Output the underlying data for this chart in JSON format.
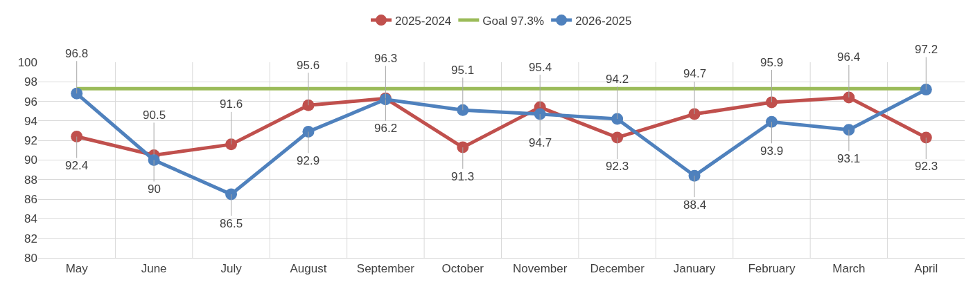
{
  "chart_data": {
    "type": "line",
    "categories": [
      "May",
      "June",
      "July",
      "August",
      "September",
      "October",
      "November",
      "December",
      "January",
      "February",
      "March",
      "April"
    ],
    "series": [
      {
        "name": "2025-2024",
        "color": "#c0504d",
        "marker": "circle",
        "values": [
          92.4,
          90.5,
          91.6,
          95.6,
          96.3,
          91.3,
          95.4,
          92.3,
          94.7,
          95.9,
          96.4,
          92.3
        ],
        "value_labels": [
          "92.4",
          "90.5",
          "91.6",
          "95.6",
          "96.3",
          "91.3",
          "95.4",
          "92.3",
          "94.7",
          "95.9",
          "96.4",
          "92.3"
        ]
      },
      {
        "name": "Goal 97.3%",
        "color": "#9bbb59",
        "marker": "none",
        "values": [
          97.3,
          97.3,
          97.3,
          97.3,
          97.3,
          97.3,
          97.3,
          97.3,
          97.3,
          97.3,
          97.3,
          97.3
        ]
      },
      {
        "name": "2026-2025",
        "color": "#4f81bd",
        "marker": "circle",
        "values": [
          96.8,
          90,
          86.5,
          92.9,
          96.2,
          95.1,
          94.7,
          94.2,
          88.4,
          93.9,
          93.1,
          97.2
        ],
        "value_labels": [
          "96.8",
          "90",
          "86.5",
          "92.9",
          "96.2",
          "95.1",
          "94.7",
          "94.2",
          "88.4",
          "93.9",
          "93.1",
          "97.2"
        ]
      }
    ],
    "ylim": [
      80,
      100
    ],
    "yticks": [
      80,
      82,
      84,
      86,
      88,
      90,
      92,
      94,
      96,
      98,
      100
    ],
    "grid": true,
    "legend": "top",
    "line_style": "solid"
  }
}
